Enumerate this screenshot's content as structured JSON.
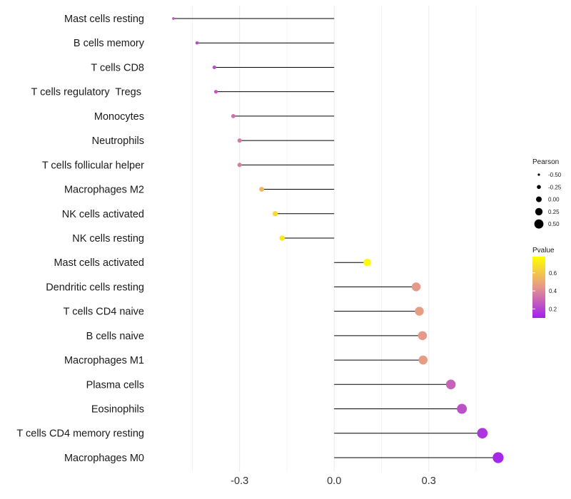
{
  "chart_data": {
    "type": "lollipop",
    "title": "",
    "xlabel": "",
    "ylabel": "",
    "xlim": [
      -0.58,
      0.57
    ],
    "x_ticks": [
      -0.3,
      0.0,
      0.3
    ],
    "x_tick_labels": [
      "-0.3",
      "0.0",
      "0.3"
    ],
    "grid": true,
    "categories": [
      "Mast cells resting",
      "B cells memory",
      "T cells CD8",
      "T cells regulatory  Tregs ",
      "Monocytes",
      "Neutrophils",
      "T cells follicular helper",
      "Macrophages M2",
      "NK cells activated",
      "NK cells resting",
      "Mast cells activated",
      "Dendritic cells resting",
      "T cells CD4 naive",
      "B cells naive",
      "Macrophages M1",
      "Plasma cells",
      "Eosinophils",
      "T cells CD4 memory resting",
      "Macrophages M0"
    ],
    "pearson": [
      -0.51,
      -0.435,
      -0.38,
      -0.375,
      -0.32,
      -0.3,
      -0.3,
      -0.23,
      -0.187,
      -0.165,
      0.105,
      0.26,
      0.27,
      0.28,
      0.282,
      0.37,
      0.405,
      0.47,
      0.52
    ],
    "pvalue": [
      0.26,
      0.22,
      0.24,
      0.26,
      0.33,
      0.36,
      0.37,
      0.55,
      0.66,
      0.7,
      0.76,
      0.45,
      0.46,
      0.45,
      0.46,
      0.29,
      0.24,
      0.16,
      0.12
    ],
    "size_legend": {
      "title": "Pearson",
      "values": [
        -0.5,
        -0.25,
        0.0,
        0.25,
        0.5
      ],
      "labels": [
        "-0.50",
        "-0.25",
        "0.00",
        "0.25",
        "0.50"
      ]
    },
    "color_legend": {
      "title": "Pvalue",
      "range": [
        0.1,
        0.78
      ],
      "ticks": [
        0.2,
        0.4,
        0.6
      ],
      "tick_labels": [
        "0.2",
        "0.4",
        "0.6"
      ],
      "low_color": "#a020f0",
      "mid_color": "#e5968c",
      "high_color": "#ffff00"
    },
    "stem_color": "#000000",
    "grid_color": "#ebebeb"
  }
}
